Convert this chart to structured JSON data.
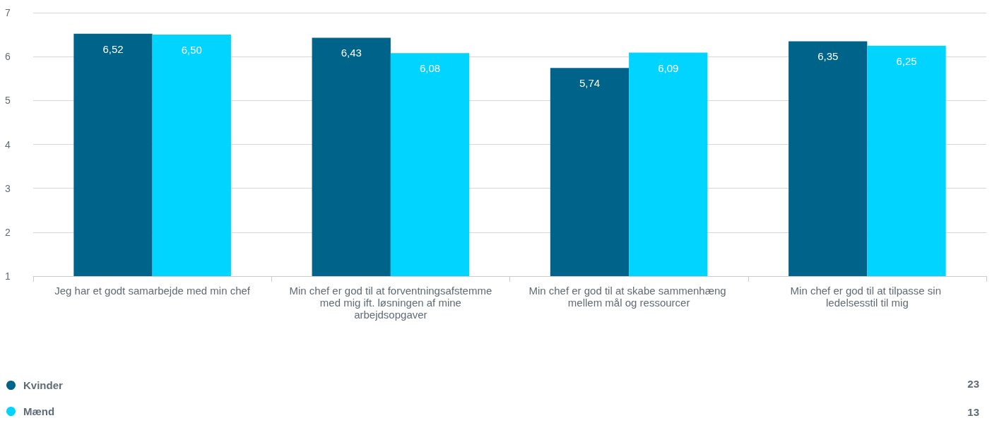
{
  "chart_data": {
    "type": "bar",
    "categories": [
      "Jeg har et godt samarbejde med min chef",
      "Min chef er god til at forventningsafstemme med mig ift. løsningen af mine arbejdsopgaver",
      "Min chef er god til at skabe sammenhæng mellem mål og ressourcer",
      "Min chef er god til at tilpasse sin ledelsesstil til mig"
    ],
    "series": [
      {
        "name": "Kvinder",
        "color": "#006389",
        "values": [
          6.52,
          6.43,
          5.74,
          6.35
        ],
        "value_labels": [
          "6,52",
          "6,43",
          "5,74",
          "6,35"
        ]
      },
      {
        "name": "Mænd",
        "color": "#00d4ff",
        "values": [
          6.5,
          6.08,
          6.09,
          6.25
        ],
        "value_labels": [
          "6,50",
          "6,08",
          "6,09",
          "6,25"
        ]
      }
    ],
    "ylim": [
      1,
      7
    ],
    "yticks": [
      1,
      2,
      3,
      4,
      5,
      6,
      7
    ],
    "grid": "y",
    "legend": "bottom left",
    "annotations": [
      "23",
      "13"
    ]
  }
}
